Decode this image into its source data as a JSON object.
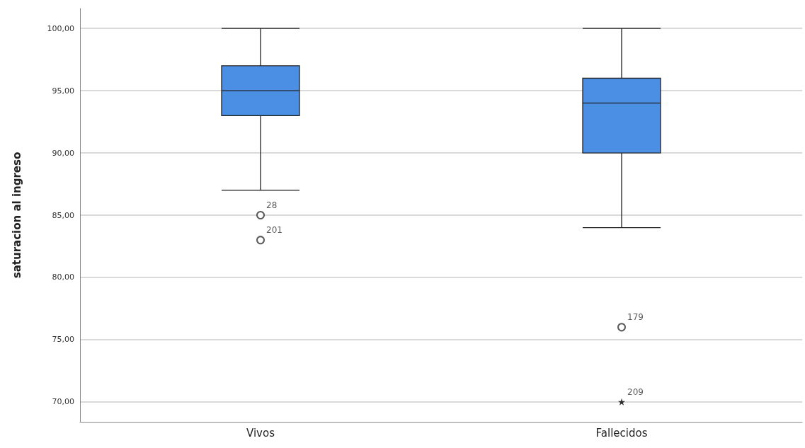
{
  "chart_data": {
    "type": "box",
    "ylabel": "saturacion al ingreso",
    "categories": [
      "Vivos",
      "Fallecidos"
    ],
    "series": [
      {
        "color": "#4a8fe3",
        "boxes": [
          {
            "low": 87,
            "q1": 93,
            "median": 95,
            "q3": 97,
            "high": 100
          },
          {
            "low": 84,
            "q1": 90,
            "median": 94,
            "q3": 96,
            "high": 100
          }
        ]
      },
      {
        "type": "scatter",
        "x": [
          "Vivos",
          "Vivos",
          "Fallecidos"
        ],
        "values": [
          85,
          83,
          76
        ],
        "marker": "circle",
        "color": "#333333"
      },
      {
        "type": "scatter",
        "x": [
          "Fallecidos"
        ],
        "values": [
          70
        ],
        "marker": "star",
        "color": "#000000"
      }
    ],
    "ylim": [
      68.4,
      101.6
    ],
    "yticks": [
      {
        "value": 70,
        "label": "70,00"
      },
      {
        "value": 75,
        "label": "75,00"
      },
      {
        "value": 80,
        "label": "80,00"
      },
      {
        "value": 85,
        "label": "85,00"
      },
      {
        "value": 90,
        "label": "90,00"
      },
      {
        "value": 95,
        "label": "95,00"
      },
      {
        "value": 100,
        "label": "100,00"
      }
    ],
    "grid": "y",
    "annotations": [
      {
        "text": "28",
        "x": "Vivos",
        "y": 85
      },
      {
        "text": "201",
        "x": "Vivos",
        "y": 83
      },
      {
        "text": "179",
        "x": "Fallecidos",
        "y": 76
      },
      {
        "text": "209",
        "x": "Fallecidos",
        "y": 70
      }
    ]
  }
}
